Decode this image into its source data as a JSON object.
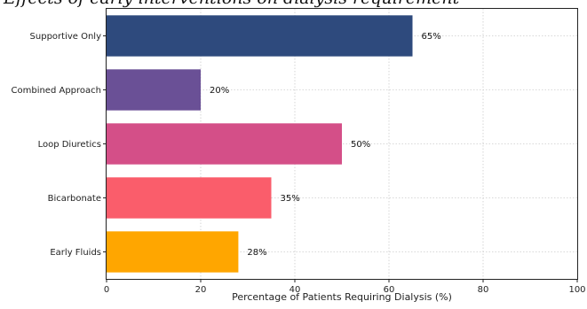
{
  "chart_data": {
    "type": "bar",
    "orientation": "horizontal",
    "title": "Effects of early interventions on dialysis requirement",
    "xlabel": "Percentage of Patients Requiring Dialysis (%)",
    "ylabel": "",
    "xlim": [
      0,
      100
    ],
    "xticks": [
      0,
      20,
      40,
      60,
      80,
      100
    ],
    "grid": true,
    "categories": [
      "Supportive Only",
      "Combined Approach",
      "Loop Diuretics",
      "Bicarbonate",
      "Early Fluids"
    ],
    "values": [
      65,
      20,
      50,
      35,
      28
    ],
    "data_labels": [
      "65%",
      "20%",
      "50%",
      "35%",
      "28%"
    ],
    "colors": [
      "#2e4a7d",
      "#6a5096",
      "#d44f88",
      "#fa5d6b",
      "#ffa600"
    ]
  }
}
